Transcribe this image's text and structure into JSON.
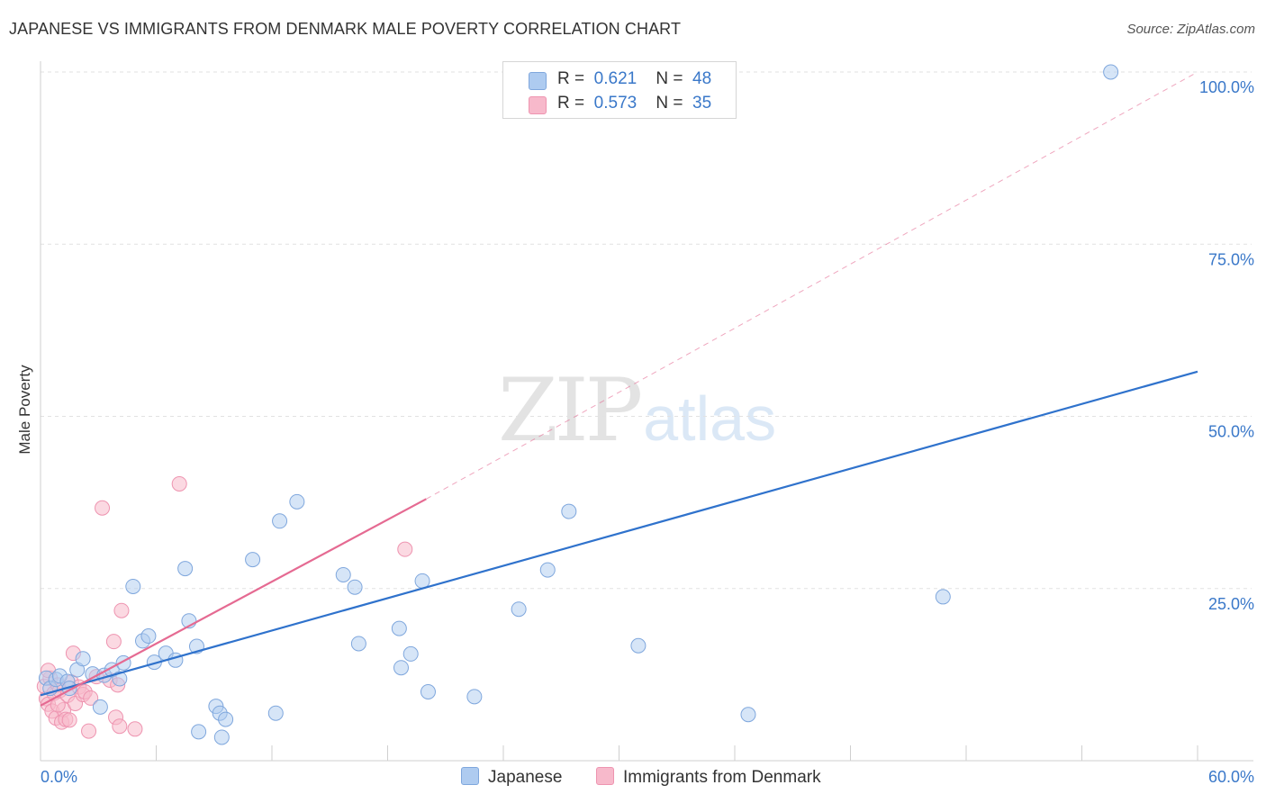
{
  "title": "JAPANESE VS IMMIGRANTS FROM DENMARK MALE POVERTY CORRELATION CHART",
  "source": "Source: ZipAtlas.com",
  "watermark": {
    "zip": "ZIP",
    "atlas": "atlas"
  },
  "legend_top": [
    {
      "r_label": "R =",
      "r_value": "0.621",
      "n_label": "N =",
      "n_value": "48"
    },
    {
      "r_label": "R =",
      "r_value": "0.573",
      "n_label": "N =",
      "n_value": "35"
    }
  ],
  "legend_bottom": [
    {
      "label": "Japanese"
    },
    {
      "label": "Immigrants from Denmark"
    }
  ],
  "colors": {
    "blue_fill": "#aecbf0",
    "blue_stroke": "#7fa7dd",
    "blue_line": "#2f72cc",
    "pink_fill": "#f7b9cb",
    "pink_stroke": "#ee94b0",
    "pink_line": "#e56a92",
    "axis_text": "#3a78c9"
  },
  "chart_data": {
    "type": "scatter",
    "title": "JAPANESE VS IMMIGRANTS FROM DENMARK MALE POVERTY CORRELATION CHART",
    "xlabel": "",
    "ylabel": "Male Poverty",
    "xlim": [
      0,
      60
    ],
    "ylim": [
      0,
      100
    ],
    "x_tick_labels": [
      "0.0%",
      "60.0%"
    ],
    "y_ticks": [
      25,
      50,
      75,
      100
    ],
    "y_tick_labels": [
      "25.0%",
      "50.0%",
      "75.0%",
      "100.0%"
    ],
    "grid": true,
    "series": [
      {
        "name": "Japanese",
        "r": 0.621,
        "n": 48,
        "trend": {
          "x0": 0,
          "y0": 9.5,
          "x1": 60,
          "y1": 56.5
        },
        "points": [
          [
            0.3,
            12.0
          ],
          [
            0.5,
            10.5
          ],
          [
            0.8,
            11.8
          ],
          [
            1.0,
            12.3
          ],
          [
            1.4,
            11.5
          ],
          [
            1.5,
            10.5
          ],
          [
            1.9,
            13.2
          ],
          [
            2.2,
            14.8
          ],
          [
            2.7,
            12.6
          ],
          [
            3.3,
            12.4
          ],
          [
            3.7,
            13.2
          ],
          [
            4.1,
            11.9
          ],
          [
            4.3,
            14.2
          ],
          [
            4.8,
            25.3
          ],
          [
            5.3,
            17.4
          ],
          [
            5.6,
            18.1
          ],
          [
            5.9,
            14.3
          ],
          [
            6.5,
            15.6
          ],
          [
            7.0,
            14.6
          ],
          [
            7.5,
            27.9
          ],
          [
            7.7,
            20.3
          ],
          [
            8.1,
            16.6
          ],
          [
            8.2,
            4.2
          ],
          [
            9.1,
            7.9
          ],
          [
            9.3,
            6.9
          ],
          [
            9.4,
            3.4
          ],
          [
            9.6,
            6.0
          ],
          [
            11.0,
            29.2
          ],
          [
            12.4,
            34.8
          ],
          [
            12.2,
            6.9
          ],
          [
            13.3,
            37.6
          ],
          [
            15.7,
            27.0
          ],
          [
            16.3,
            25.2
          ],
          [
            16.5,
            17.0
          ],
          [
            18.6,
            19.2
          ],
          [
            18.7,
            13.5
          ],
          [
            19.2,
            15.5
          ],
          [
            19.8,
            26.1
          ],
          [
            20.1,
            10.0
          ],
          [
            22.5,
            9.3
          ],
          [
            24.8,
            22.0
          ],
          [
            26.3,
            27.7
          ],
          [
            27.4,
            36.2
          ],
          [
            31.0,
            16.7
          ],
          [
            36.7,
            6.7
          ],
          [
            46.8,
            23.8
          ],
          [
            55.5,
            100.0
          ],
          [
            3.1,
            7.8
          ]
        ]
      },
      {
        "name": "Immigrants from Denmark",
        "r": 0.573,
        "n": 35,
        "trend": {
          "x0": 0,
          "y0": 8.0,
          "x1": 20,
          "y1": 38.0,
          "dashed_to": {
            "x": 60,
            "y": 100
          }
        },
        "points": [
          [
            0.2,
            10.8
          ],
          [
            0.3,
            9.0
          ],
          [
            0.4,
            8.2
          ],
          [
            0.5,
            12.0
          ],
          [
            0.6,
            7.2
          ],
          [
            0.7,
            9.8
          ],
          [
            0.8,
            6.2
          ],
          [
            0.9,
            11.0
          ],
          [
            1.0,
            10.2
          ],
          [
            1.1,
            5.6
          ],
          [
            1.2,
            7.4
          ],
          [
            1.3,
            6.0
          ],
          [
            1.4,
            9.5
          ],
          [
            1.6,
            11.4
          ],
          [
            1.7,
            15.6
          ],
          [
            1.8,
            8.3
          ],
          [
            2.0,
            10.7
          ],
          [
            2.2,
            9.6
          ],
          [
            2.3,
            10.0
          ],
          [
            2.5,
            4.3
          ],
          [
            3.2,
            36.7
          ],
          [
            3.6,
            11.7
          ],
          [
            3.8,
            17.3
          ],
          [
            3.9,
            6.3
          ],
          [
            4.1,
            5.0
          ],
          [
            4.2,
            21.8
          ],
          [
            4.9,
            4.6
          ],
          [
            4.0,
            11.0
          ],
          [
            7.2,
            40.2
          ],
          [
            18.9,
            30.7
          ],
          [
            0.4,
            13.1
          ],
          [
            2.9,
            12.2
          ],
          [
            1.5,
            5.9
          ],
          [
            0.9,
            8.1
          ],
          [
            2.6,
            9.1
          ]
        ]
      }
    ]
  }
}
